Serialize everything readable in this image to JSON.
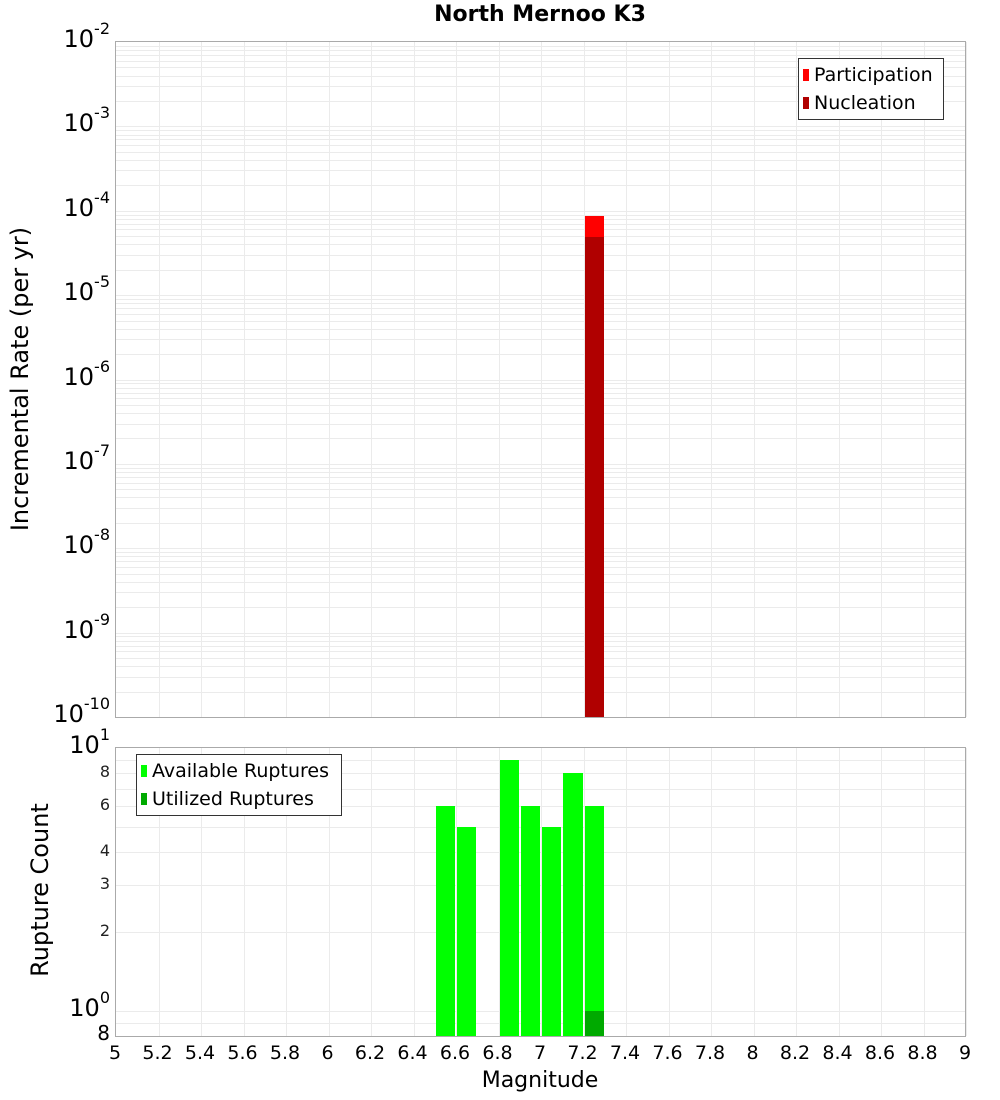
{
  "title": "North Mernoo K3",
  "top_chart": {
    "ylabel": "Incremental Rate (per yr)",
    "y_ticks": [
      {
        "base": "10",
        "exp": "-2"
      },
      {
        "base": "10",
        "exp": "-3"
      },
      {
        "base": "10",
        "exp": "-4"
      },
      {
        "base": "10",
        "exp": "-5"
      },
      {
        "base": "10",
        "exp": "-6"
      },
      {
        "base": "10",
        "exp": "-7"
      },
      {
        "base": "10",
        "exp": "-8"
      },
      {
        "base": "10",
        "exp": "-9"
      },
      {
        "base": "10",
        "exp": "-10"
      }
    ],
    "legend": [
      {
        "label": "Participation",
        "color": "#ff0000"
      },
      {
        "label": "Nucleation",
        "color": "#b00000"
      }
    ]
  },
  "bottom_chart": {
    "ylabel": "Rupture Count",
    "y_ticks_major": [
      {
        "base": "10",
        "exp": "1"
      },
      {
        "base": "10",
        "exp": "0"
      }
    ],
    "y_ticks_minor": [
      "8",
      "6",
      "4",
      "3",
      "2",
      "8"
    ],
    "legend": [
      {
        "label": "Available Ruptures",
        "color": "#00ff00"
      },
      {
        "label": "Utilized Ruptures",
        "color": "#00aa00"
      }
    ]
  },
  "xlabel": "Magnitude",
  "x_ticks": [
    "5",
    "5.2",
    "5.4",
    "5.6",
    "5.8",
    "6",
    "6.2",
    "6.4",
    "6.6",
    "6.8",
    "7",
    "7.2",
    "7.4",
    "7.6",
    "7.8",
    "8",
    "8.2",
    "8.4",
    "8.6",
    "8.8",
    "9"
  ],
  "chart_data": [
    {
      "type": "bar",
      "title": "North Mernoo K3",
      "xlabel": "Magnitude",
      "ylabel": "Incremental Rate (per yr)",
      "yscale": "log",
      "xlim": [
        5,
        9
      ],
      "ylim": [
        1e-10,
        0.01
      ],
      "legend_position": "top-right",
      "series": [
        {
          "name": "Participation",
          "color": "#ff0000",
          "x": [
            7.25
          ],
          "values": [
            8.7e-05
          ]
        },
        {
          "name": "Nucleation",
          "color": "#b00000",
          "x": [
            7.25
          ],
          "values": [
            4.9e-05
          ]
        }
      ]
    },
    {
      "type": "bar",
      "xlabel": "Magnitude",
      "ylabel": "Rupture Count",
      "yscale": "log",
      "xlim": [
        5,
        9
      ],
      "ylim": [
        0.8,
        10
      ],
      "legend_position": "top-left",
      "series": [
        {
          "name": "Available Ruptures",
          "color": "#00ff00",
          "x": [
            6.55,
            6.65,
            6.85,
            6.95,
            7.05,
            7.15,
            7.25
          ],
          "values": [
            6,
            5,
            9,
            6,
            5,
            8,
            6
          ]
        },
        {
          "name": "Utilized Ruptures",
          "color": "#00aa00",
          "x": [
            7.25
          ],
          "values": [
            1
          ]
        }
      ]
    }
  ]
}
